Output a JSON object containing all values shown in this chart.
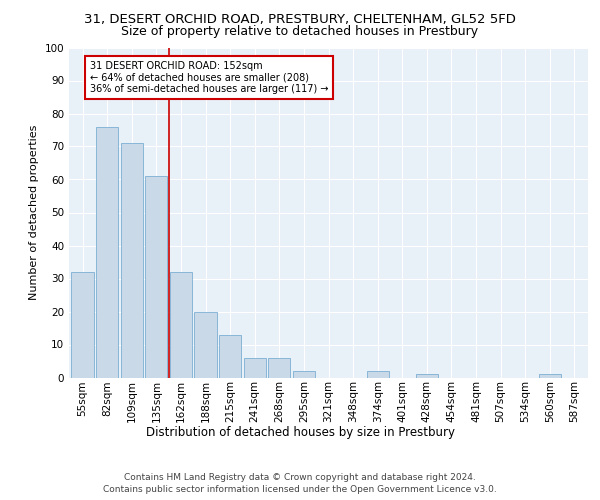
{
  "title1": "31, DESERT ORCHID ROAD, PRESTBURY, CHELTENHAM, GL52 5FD",
  "title2": "Size of property relative to detached houses in Prestbury",
  "xlabel": "Distribution of detached houses by size in Prestbury",
  "ylabel": "Number of detached properties",
  "bar_labels": [
    "55sqm",
    "82sqm",
    "109sqm",
    "135sqm",
    "162sqm",
    "188sqm",
    "215sqm",
    "241sqm",
    "268sqm",
    "295sqm",
    "321sqm",
    "348sqm",
    "374sqm",
    "401sqm",
    "428sqm",
    "454sqm",
    "481sqm",
    "507sqm",
    "534sqm",
    "560sqm",
    "587sqm"
  ],
  "bar_values": [
    32,
    76,
    71,
    61,
    32,
    20,
    13,
    6,
    6,
    2,
    0,
    0,
    2,
    0,
    1,
    0,
    0,
    0,
    0,
    1,
    0
  ],
  "bar_color": "#c9d9e8",
  "bar_edge_color": "#7bafd4",
  "property_line_x": 3.5,
  "annotation_text": "31 DESERT ORCHID ROAD: 152sqm\n← 64% of detached houses are smaller (208)\n36% of semi-detached houses are larger (117) →",
  "annotation_box_color": "#ffffff",
  "annotation_box_edge": "#cc0000",
  "vline_color": "#cc0000",
  "ylim": [
    0,
    100
  ],
  "yticks": [
    0,
    10,
    20,
    30,
    40,
    50,
    60,
    70,
    80,
    90,
    100
  ],
  "background_color": "#e8f0f8",
  "footer": "Contains HM Land Registry data © Crown copyright and database right 2024.\nContains public sector information licensed under the Open Government Licence v3.0.",
  "title1_fontsize": 9.5,
  "title2_fontsize": 9,
  "xlabel_fontsize": 8.5,
  "ylabel_fontsize": 8,
  "tick_fontsize": 7.5,
  "footer_fontsize": 6.5
}
